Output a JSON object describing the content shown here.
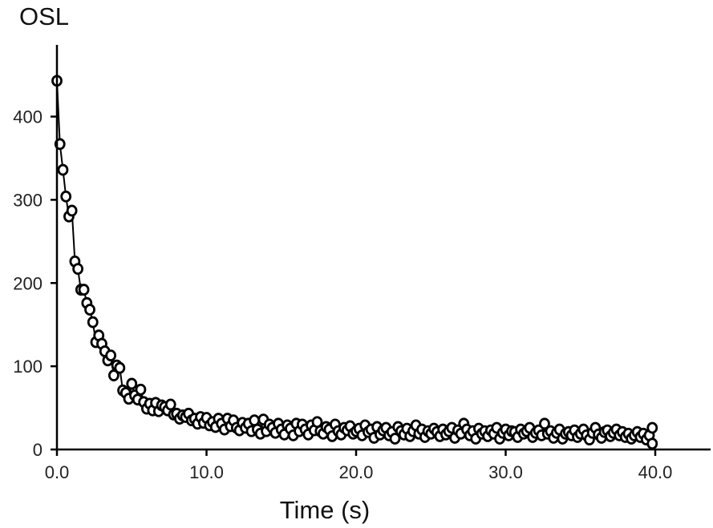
{
  "chart_data": {
    "type": "scatter",
    "title": "",
    "xlabel": "Time (s)",
    "ylabel": "OSL",
    "xlim": [
      0,
      44
    ],
    "ylim": [
      0,
      480
    ],
    "x_ticks": [
      0,
      10,
      20,
      30,
      40
    ],
    "x_tick_labels": [
      "0.0",
      "10.0",
      "20.0",
      "30.0",
      "40.0"
    ],
    "y_ticks": [
      0,
      100,
      200,
      300,
      400
    ],
    "y_tick_labels": [
      "0",
      "100",
      "200",
      "300",
      "400"
    ],
    "grid": false,
    "legend": "none",
    "colors": {
      "line": "#000000",
      "marker_stroke": "#000000",
      "marker_fill": "#ffffff"
    },
    "series": [
      {
        "x": [
          0.0,
          0.2,
          0.4,
          0.6,
          0.8,
          1.0,
          1.2,
          1.4,
          1.6,
          1.8,
          2.0,
          2.2,
          2.4,
          2.6,
          2.8,
          3.0,
          3.2,
          3.4,
          3.6,
          3.8,
          4.0,
          4.2,
          4.4,
          4.6,
          4.8,
          5.0,
          5.2,
          5.4,
          5.6,
          5.8,
          6.0,
          6.2,
          6.4,
          6.6,
          6.8,
          7.0,
          7.2,
          7.4,
          7.6,
          7.8,
          8.0,
          8.2,
          8.4,
          8.6,
          8.8,
          9.0,
          9.2,
          9.4,
          9.6,
          9.8,
          10.0,
          10.2,
          10.4,
          10.6,
          10.8,
          11.0,
          11.2,
          11.4,
          11.6,
          11.8,
          12.0,
          12.2,
          12.4,
          12.6,
          12.8,
          13.0,
          13.2,
          13.4,
          13.6,
          13.8,
          14.0,
          14.2,
          14.4,
          14.6,
          14.8,
          15.0,
          15.2,
          15.4,
          15.6,
          15.8,
          16.0,
          16.2,
          16.4,
          16.6,
          16.8,
          17.0,
          17.2,
          17.4,
          17.6,
          17.8,
          18.0,
          18.2,
          18.4,
          18.6,
          18.8,
          19.0,
          19.2,
          19.4,
          19.6,
          19.8,
          20.0,
          20.2,
          20.4,
          20.6,
          20.8,
          21.0,
          21.2,
          21.4,
          21.6,
          21.8,
          22.0,
          22.2,
          22.4,
          22.6,
          22.8,
          23.0,
          23.2,
          23.4,
          23.6,
          23.8,
          24.0,
          24.2,
          24.4,
          24.6,
          24.8,
          25.0,
          25.2,
          25.4,
          25.6,
          25.8,
          26.0,
          26.2,
          26.4,
          26.6,
          26.8,
          27.0,
          27.2,
          27.4,
          27.6,
          27.8,
          28.0,
          28.2,
          28.4,
          28.6,
          28.8,
          29.0,
          29.2,
          29.4,
          29.6,
          29.8,
          30.0,
          30.2,
          30.4,
          30.6,
          30.8,
          31.0,
          31.2,
          31.4,
          31.6,
          31.8,
          32.0,
          32.2,
          32.4,
          32.6,
          32.8,
          33.0,
          33.2,
          33.4,
          33.6,
          33.8,
          34.0,
          34.2,
          34.4,
          34.6,
          34.8,
          35.0,
          35.2,
          35.4,
          35.6,
          35.8,
          36.0,
          36.2,
          36.4,
          36.6,
          36.8,
          37.0,
          37.2,
          37.4,
          37.6,
          37.8,
          38.0,
          38.2,
          38.4,
          38.6,
          38.8,
          39.0,
          39.2,
          39.4,
          39.6,
          39.8
        ],
        "y": [
          443,
          367,
          336,
          304,
          280,
          287,
          226,
          217,
          192,
          192,
          176,
          168,
          153,
          129,
          137,
          127,
          118,
          107,
          113,
          89,
          101,
          98,
          71,
          68,
          61,
          79,
          65,
          60,
          72,
          57,
          49,
          55,
          47,
          56,
          46,
          53,
          51,
          47,
          54,
          42,
          43,
          37,
          41,
          39,
          43,
          35,
          37,
          31,
          39,
          32,
          38,
          29,
          33,
          27,
          37,
          31,
          24,
          37,
          28,
          35,
          26,
          23,
          32,
          26,
          31,
          22,
          35,
          24,
          19,
          36,
          22,
          30,
          26,
          20,
          31,
          24,
          18,
          29,
          25,
          17,
          31,
          22,
          30,
          24,
          18,
          29,
          23,
          33,
          22,
          19,
          27,
          24,
          16,
          30,
          22,
          18,
          26,
          23,
          28,
          19,
          22,
          25,
          17,
          29,
          21,
          24,
          14,
          27,
          18,
          23,
          26,
          17,
          21,
          13,
          27,
          22,
          18,
          25,
          16,
          22,
          29,
          19,
          24,
          15,
          22,
          19,
          25,
          21,
          16,
          24,
          18,
          22,
          26,
          14,
          23,
          19,
          31,
          24,
          17,
          22,
          13,
          25,
          19,
          22,
          16,
          23,
          19,
          26,
          13,
          20,
          24,
          17,
          22,
          21,
          15,
          24,
          19,
          22,
          26,
          15,
          20,
          23,
          17,
          31,
          19,
          22,
          14,
          20,
          24,
          13,
          19,
          21,
          17,
          23,
          15,
          19,
          24,
          17,
          12,
          20,
          26,
          18,
          14,
          21,
          23,
          16,
          20,
          24,
          17,
          21,
          15,
          19,
          13,
          17,
          21,
          15,
          19,
          12,
          17,
          7
        ]
      }
    ],
    "extra_points": [
      [
        39.8,
        26
      ]
    ]
  }
}
